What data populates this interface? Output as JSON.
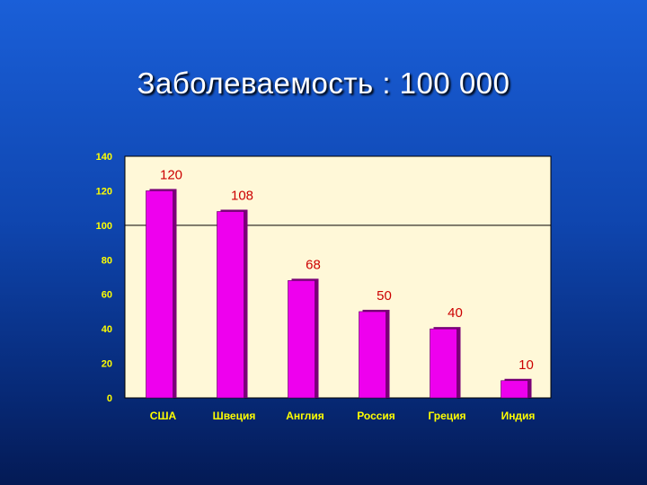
{
  "slide": {
    "title": "Заболеваемость : 100 000"
  },
  "colors": {
    "bar": "#ee00ee",
    "bar_shadow": "#7a0078",
    "data_label": "#cc0000",
    "tick_label": "#ffff00",
    "category_label": "#ffff00",
    "plot_background": "#fff8d8"
  },
  "chart_data": {
    "type": "bar",
    "title": "",
    "xlabel": "",
    "ylabel": "",
    "categories": [
      "США",
      "Швеция",
      "Англия",
      "Россия",
      "Греция",
      "Индия"
    ],
    "values": [
      120,
      108,
      68,
      50,
      40,
      10
    ],
    "data_labels": [
      "120",
      "108",
      "68",
      "50",
      "40",
      "10"
    ],
    "ylim": [
      0,
      140
    ],
    "yticks": [
      0,
      20,
      40,
      60,
      80,
      100,
      120,
      140
    ],
    "reference_line": 100,
    "grid": false,
    "legend": "none"
  }
}
